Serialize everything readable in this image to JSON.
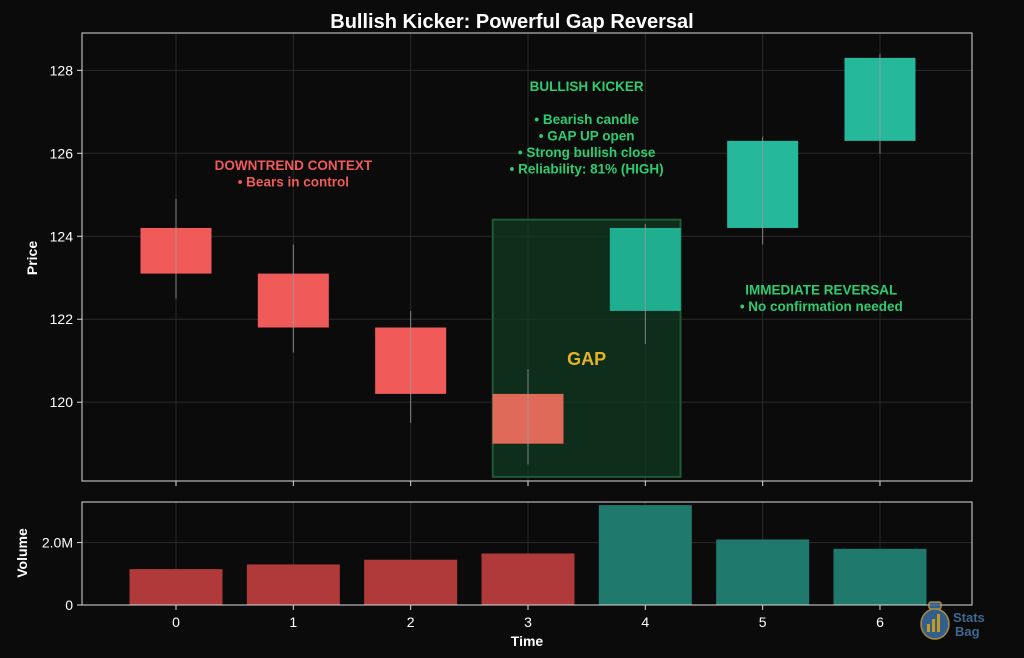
{
  "chart_data": {
    "type": "candlestick",
    "title": "Bullish Kicker: Powerful Gap Reversal",
    "xlabel": "Time",
    "price_panel": {
      "ylabel": "Price",
      "ylim": [
        118.1,
        128.9
      ],
      "yticks": [
        120,
        122,
        124,
        126,
        128
      ],
      "candles": [
        {
          "x": 0,
          "open": 124.2,
          "high": 124.9,
          "low": 122.5,
          "close": 123.1,
          "direction": "bearish"
        },
        {
          "x": 1,
          "open": 123.1,
          "high": 123.8,
          "low": 121.2,
          "close": 121.8,
          "direction": "bearish"
        },
        {
          "x": 2,
          "open": 121.8,
          "high": 122.2,
          "low": 119.5,
          "close": 120.2,
          "direction": "bearish"
        },
        {
          "x": 3,
          "open": 120.2,
          "high": 120.8,
          "low": 118.5,
          "close": 119.0,
          "direction": "bearish"
        },
        {
          "x": 4,
          "open": 122.2,
          "high": 124.3,
          "low": 121.4,
          "close": 124.2,
          "direction": "bullish"
        },
        {
          "x": 5,
          "open": 124.2,
          "high": 126.4,
          "low": 123.8,
          "close": 126.3,
          "direction": "bullish"
        },
        {
          "x": 6,
          "open": 126.3,
          "high": 128.4,
          "low": 126.0,
          "close": 128.3,
          "direction": "bullish"
        }
      ],
      "gap_region": {
        "x_from": 2.7,
        "x_to": 4.3,
        "y_from": 118.2,
        "y_to": 124.4,
        "label": "GAP"
      },
      "annotations": [
        {
          "lines": [
            "DOWNTREND CONTEXT",
            "• Bears in control"
          ],
          "x": 1.0,
          "y": 125.6,
          "color": "#f05a58"
        },
        {
          "lines": [
            "BULLISH KICKER",
            "",
            "• Bearish candle",
            "• GAP UP open",
            "• Strong bullish close",
            "• Reliability: 81% (HIGH)"
          ],
          "x": 3.5,
          "y": 127.5,
          "color": "#2ecc71"
        },
        {
          "lines": [
            "IMMEDIATE REVERSAL",
            "• No confirmation needed"
          ],
          "x": 5.5,
          "y": 122.6,
          "color": "#2ecc71"
        }
      ]
    },
    "volume_panel": {
      "ylabel": "Volume",
      "ylim": [
        0,
        3.3
      ],
      "ytick_values": [
        0,
        2.0
      ],
      "ytick_labels": [
        "0",
        "2.0M"
      ],
      "unit": "M",
      "values": [
        1.15,
        1.3,
        1.45,
        1.65,
        3.2,
        2.1,
        1.8
      ],
      "directions": [
        "bearish",
        "bearish",
        "bearish",
        "bearish",
        "bullish",
        "bullish",
        "bullish"
      ]
    },
    "xticks": [
      0,
      1,
      2,
      3,
      4,
      5,
      6
    ],
    "grid": true,
    "colors": {
      "bearish": "#f05a58",
      "bearish_highlight": "#e06a5a",
      "bullish": "#26b89b",
      "bullish_highlight": "#1fae8f",
      "volume_bearish": "#b03a3a",
      "volume_bullish": "#1f7a6d",
      "gap_fill": "#103a22",
      "gap_border": "#1f5a35",
      "gap_text": "#e6b325",
      "background": "#0b0b0b",
      "axis": "#dddddd",
      "grid": "#2a2a2a"
    }
  },
  "watermark": {
    "text_line1": "Stats",
    "text_line2": "Bag",
    "icon": "money-bag-icon"
  }
}
